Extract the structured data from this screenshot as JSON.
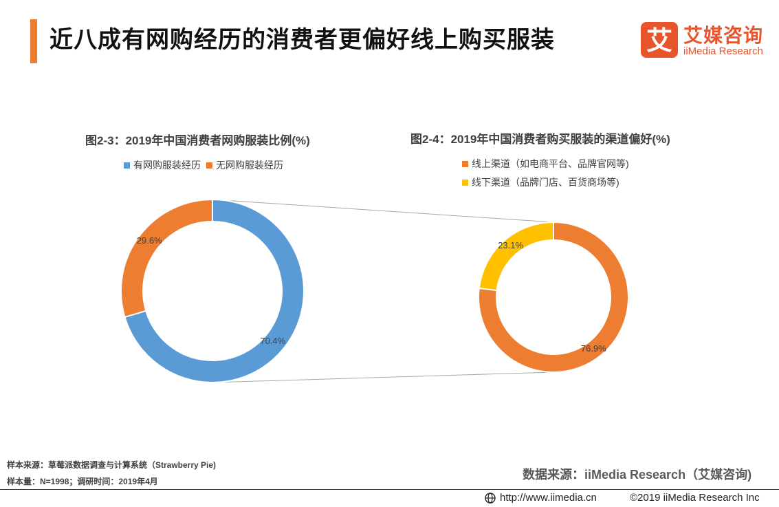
{
  "header": {
    "title": "近八成有网购经历的消费者更偏好线上购买服装"
  },
  "logo": {
    "mark_char": "艾",
    "name_cn": "艾媒咨询",
    "name_en": "iiMedia Research",
    "color": "#e8542b"
  },
  "chart_data": [
    {
      "type": "pie",
      "style": "donut",
      "title": "图2-3：2019年中国消费者网购服装比例(%)",
      "legend_position": "top",
      "categories": [
        "有网购服装经历",
        "无网购服装经历"
      ],
      "values": [
        70.4,
        29.6
      ],
      "labels": [
        "70.4%",
        "29.6%"
      ],
      "colors": [
        "#5b9bd5",
        "#ed7d31"
      ]
    },
    {
      "type": "pie",
      "style": "donut",
      "title": "图2-4：2019年中国消费者购买服装的渠道偏好(%)",
      "legend_position": "top-left",
      "categories": [
        "线上渠道（如电商平台、品牌官网等)",
        "线下渠道（品牌门店、百货商场等)"
      ],
      "values": [
        76.9,
        23.1
      ],
      "labels": [
        "76.9%",
        "23.1%"
      ],
      "colors": [
        "#ed7d31",
        "#ffc000"
      ]
    }
  ],
  "footer": {
    "sample_source": "样本来源：草莓派数据调查与计算系统（Strawberry Pie)",
    "sample_size": "样本量：N=1998；调研时间：2019年4月",
    "data_source": "数据来源：iiMedia Research（艾媒咨询)",
    "url": "http://www.iimedia.cn",
    "copyright": "©2019  iiMedia Research  Inc"
  },
  "icons": {
    "globe": "globe-icon"
  }
}
